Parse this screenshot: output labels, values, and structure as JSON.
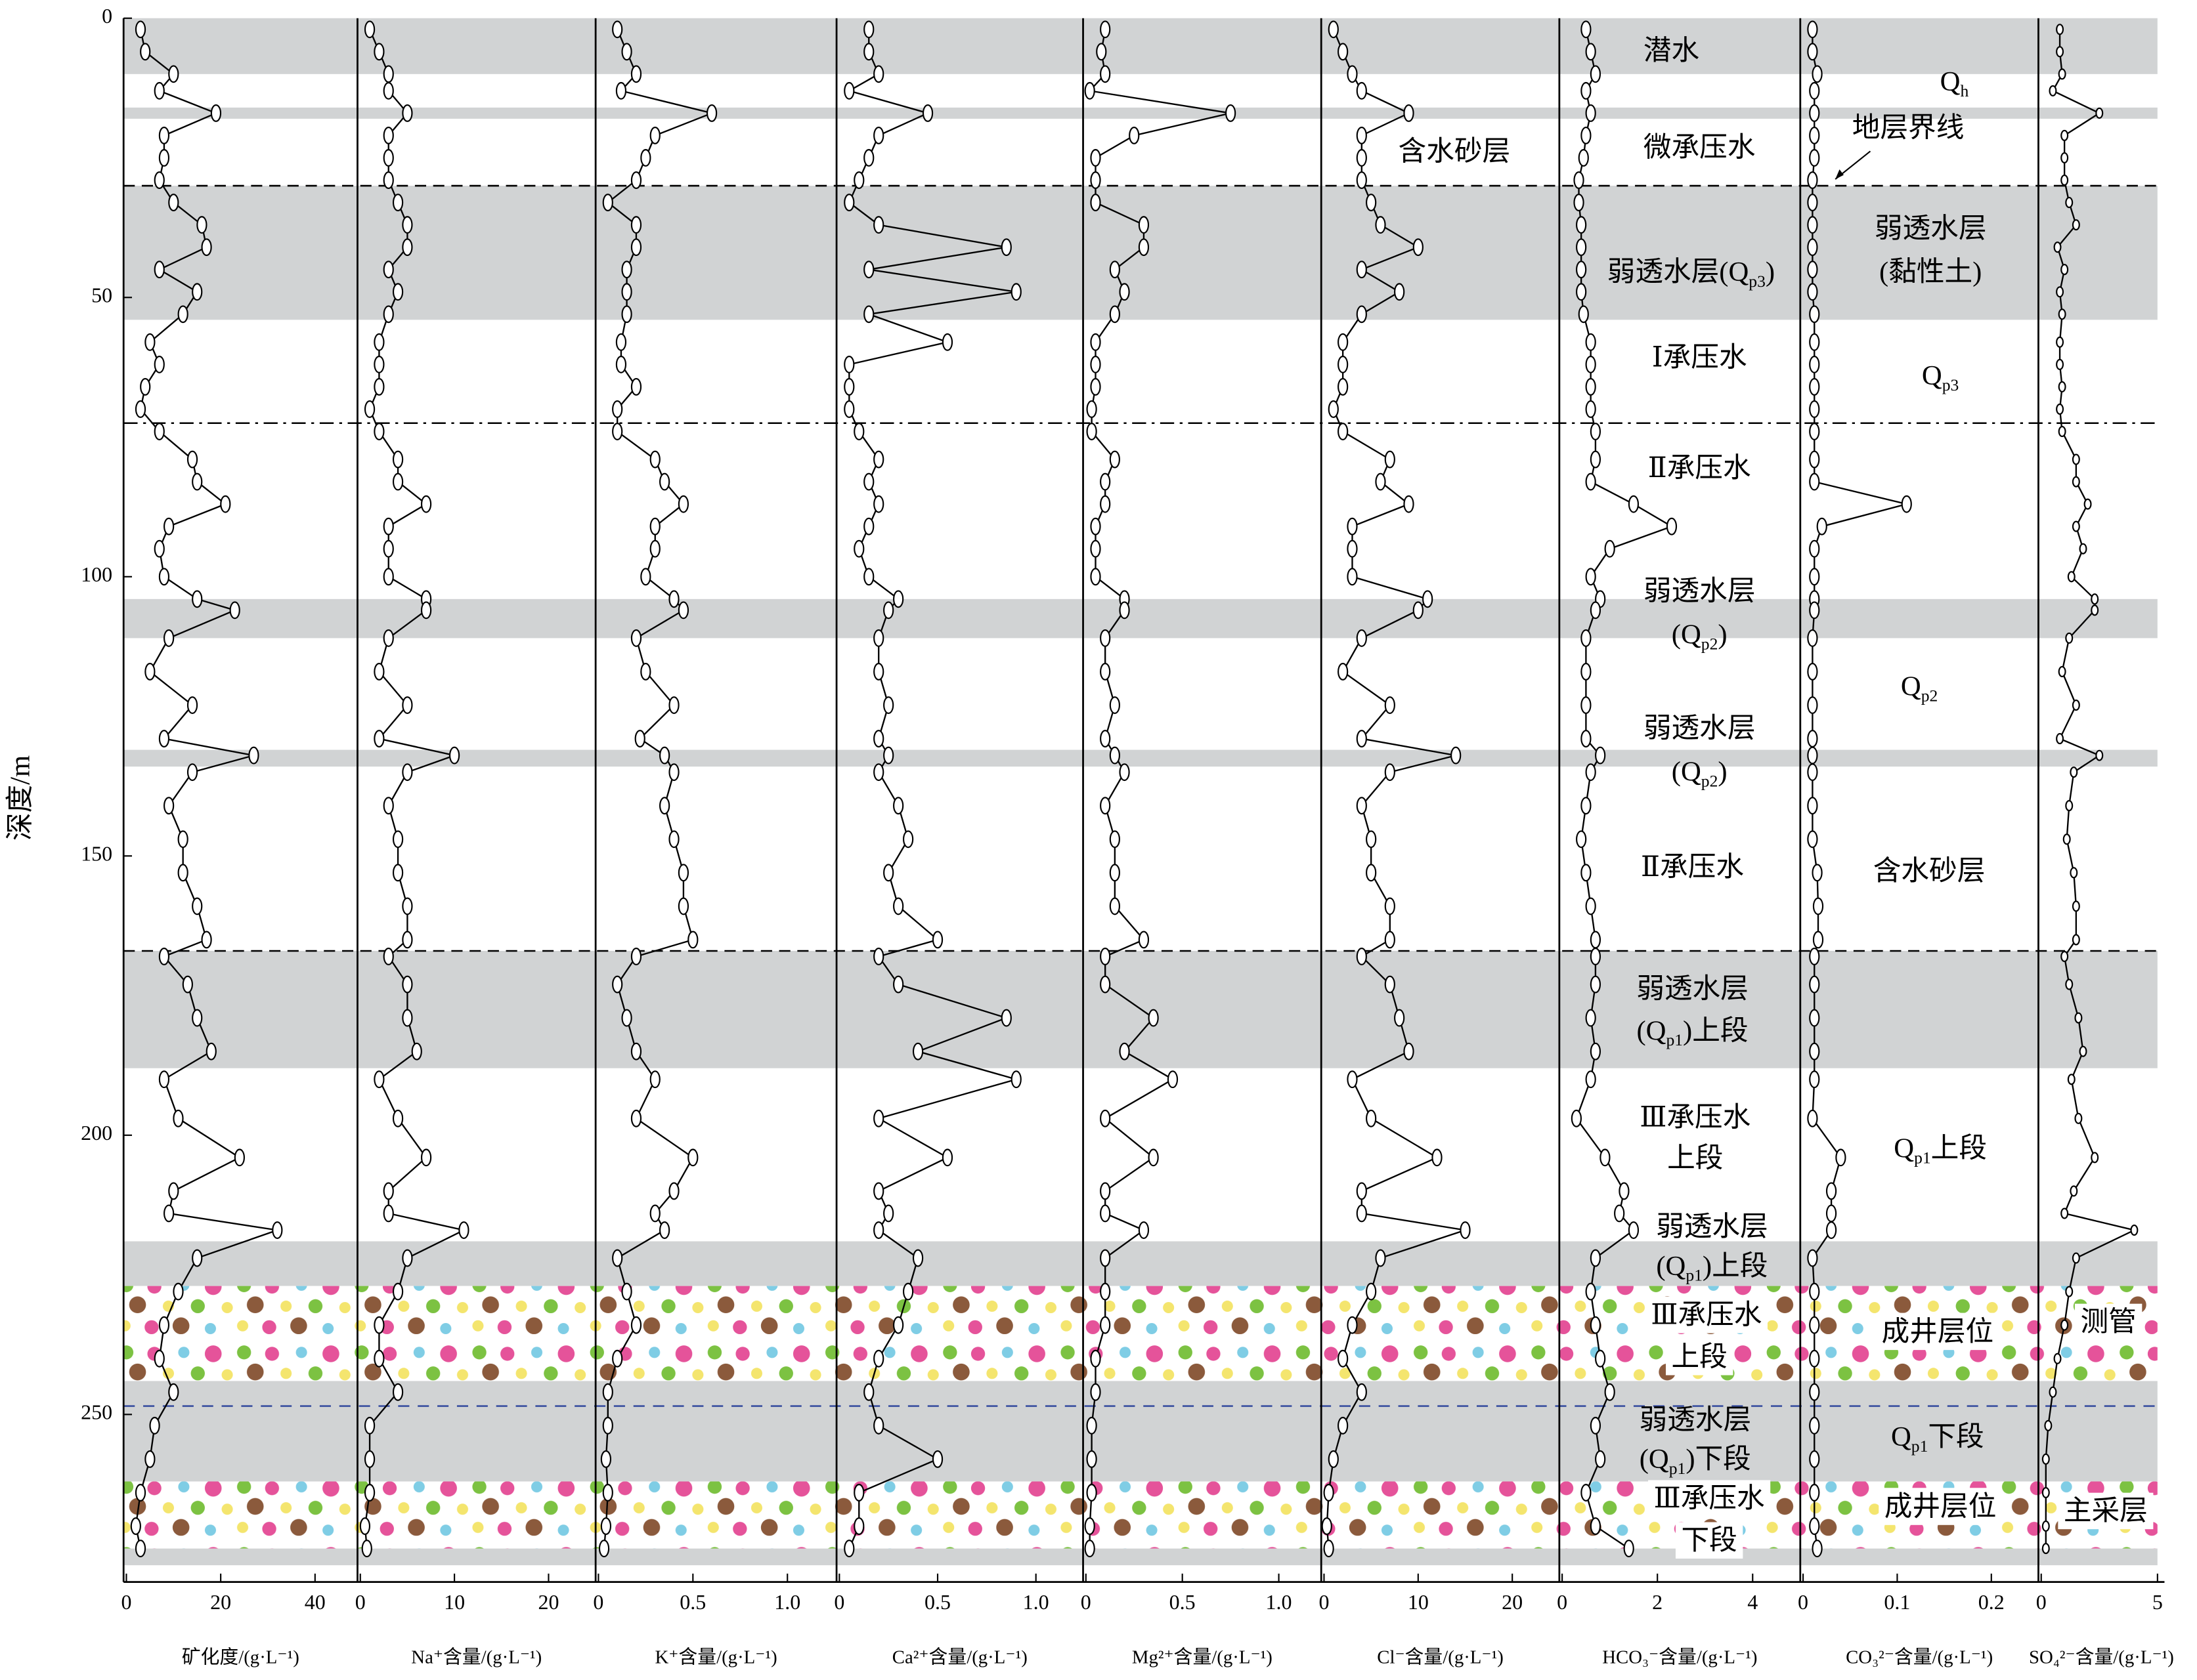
{
  "chart_data": [
    {
      "type": "line",
      "xlabel": "矿化度/(g·L⁻¹)",
      "ylabel": "深度/m",
      "ylim": [
        0,
        280
      ],
      "yticks": [
        0,
        50,
        100,
        150,
        200,
        250
      ],
      "xlim": [
        0,
        49
      ],
      "xticks": [
        0,
        20,
        40
      ],
      "color": "#000000",
      "depth": [
        2,
        6,
        10,
        13,
        17,
        21,
        25,
        29,
        33,
        37,
        41,
        45,
        49,
        53,
        58,
        62,
        66,
        70,
        74,
        79,
        83,
        87,
        91,
        95,
        100,
        104,
        106,
        111,
        117,
        123,
        129,
        132,
        135,
        141,
        147,
        153,
        159,
        165,
        168,
        173,
        179,
        185,
        190,
        197,
        204,
        210,
        214,
        217,
        222,
        228,
        234,
        240,
        246,
        252,
        258,
        264,
        270,
        274
      ],
      "values": [
        3,
        4,
        10,
        7,
        19,
        8,
        8,
        7,
        10,
        16,
        17,
        7,
        15,
        12,
        5,
        7,
        4,
        3,
        7,
        14,
        15,
        21,
        9,
        7,
        8,
        15,
        23,
        9,
        5,
        14,
        8,
        27,
        14,
        9,
        12,
        12,
        15,
        17,
        8,
        13,
        15,
        18,
        8,
        11,
        24,
        10,
        9,
        32,
        15,
        11,
        8,
        7,
        10,
        6,
        5,
        3,
        2,
        3
      ]
    },
    {
      "type": "line",
      "xlabel": "Na⁺含量/(g·L⁻¹)",
      "ylim": [
        0,
        280
      ],
      "xlim": [
        0,
        25
      ],
      "xticks": [
        0,
        10,
        20
      ],
      "color": "#000000",
      "depth": [
        2,
        6,
        10,
        13,
        17,
        21,
        25,
        29,
        33,
        37,
        41,
        45,
        49,
        53,
        58,
        62,
        66,
        70,
        74,
        79,
        83,
        87,
        91,
        95,
        100,
        104,
        106,
        111,
        117,
        123,
        129,
        132,
        135,
        141,
        147,
        153,
        159,
        165,
        168,
        173,
        179,
        185,
        190,
        197,
        204,
        210,
        214,
        217,
        222,
        228,
        234,
        240,
        246,
        252,
        258,
        264,
        270,
        274
      ],
      "values": [
        1,
        2,
        3,
        3,
        5,
        3,
        3,
        3,
        4,
        5,
        5,
        3,
        4,
        3,
        2,
        2,
        2,
        1,
        2,
        4,
        4,
        7,
        3,
        3,
        3,
        7,
        7,
        3,
        2,
        5,
        2,
        10,
        5,
        3,
        4,
        4,
        5,
        5,
        3,
        5,
        5,
        6,
        2,
        4,
        7,
        3,
        3,
        11,
        5,
        4,
        2,
        2,
        4,
        1,
        1,
        1,
        0.5,
        0.7
      ]
    },
    {
      "type": "line",
      "xlabel": "K⁺含量/(g·L⁻¹)",
      "ylim": [
        0,
        280
      ],
      "xlim": [
        0,
        1.26
      ],
      "xticks": [
        0,
        0.5,
        {
          "value": 1,
          "label": "1.0"
        }
      ],
      "color": "#000000",
      "depth": [
        2,
        6,
        10,
        13,
        17,
        21,
        25,
        29,
        33,
        37,
        41,
        45,
        49,
        53,
        58,
        62,
        66,
        70,
        74,
        79,
        83,
        87,
        91,
        95,
        100,
        104,
        106,
        111,
        117,
        123,
        129,
        132,
        135,
        141,
        147,
        153,
        159,
        165,
        168,
        173,
        179,
        185,
        190,
        197,
        204,
        210,
        214,
        217,
        222,
        228,
        234,
        240,
        246,
        252,
        258,
        264,
        270,
        274
      ],
      "values": [
        0.1,
        0.15,
        0.2,
        0.12,
        0.6,
        0.3,
        0.25,
        0.2,
        0.05,
        0.2,
        0.2,
        0.15,
        0.15,
        0.15,
        0.12,
        0.12,
        0.2,
        0.1,
        0.1,
        0.3,
        0.35,
        0.45,
        0.3,
        0.3,
        0.25,
        0.4,
        0.45,
        0.2,
        0.25,
        0.4,
        0.22,
        0.35,
        0.4,
        0.35,
        0.4,
        0.45,
        0.45,
        0.5,
        0.2,
        0.1,
        0.15,
        0.2,
        0.3,
        0.2,
        0.5,
        0.4,
        0.3,
        0.35,
        0.1,
        0.15,
        0.2,
        0.1,
        0.05,
        0.05,
        0.04,
        0.05,
        0.04,
        0.03
      ]
    },
    {
      "type": "line",
      "xlabel": "Ca²⁺含量/(g·L⁻¹)",
      "ylim": [
        0,
        280
      ],
      "xlim": [
        0,
        1.24
      ],
      "xticks": [
        0,
        0.5,
        {
          "value": 1,
          "label": "1.0"
        }
      ],
      "color": "#000000",
      "depth": [
        2,
        6,
        10,
        13,
        17,
        21,
        25,
        29,
        33,
        37,
        41,
        45,
        49,
        53,
        58,
        62,
        66,
        70,
        74,
        79,
        83,
        87,
        91,
        95,
        100,
        104,
        106,
        111,
        117,
        123,
        129,
        132,
        135,
        141,
        147,
        153,
        159,
        165,
        168,
        173,
        179,
        185,
        190,
        197,
        204,
        210,
        214,
        217,
        222,
        228,
        234,
        240,
        246,
        252,
        258,
        264,
        270,
        274
      ],
      "values": [
        0.15,
        0.15,
        0.2,
        0.05,
        0.45,
        0.2,
        0.15,
        0.1,
        0.05,
        0.2,
        0.85,
        0.15,
        0.9,
        0.15,
        0.55,
        0.05,
        0.05,
        0.05,
        0.1,
        0.2,
        0.15,
        0.2,
        0.15,
        0.1,
        0.15,
        0.3,
        0.25,
        0.2,
        0.2,
        0.25,
        0.2,
        0.25,
        0.2,
        0.3,
        0.35,
        0.25,
        0.3,
        0.5,
        0.2,
        0.3,
        0.85,
        0.4,
        0.9,
        0.2,
        0.55,
        0.2,
        0.25,
        0.2,
        0.4,
        0.35,
        0.3,
        0.2,
        0.15,
        0.2,
        0.5,
        0.1,
        0.1,
        0.05
      ]
    },
    {
      "type": "line",
      "xlabel": "Mg²⁺含量/(g·L⁻¹)",
      "ylim": [
        0,
        280
      ],
      "xlim": [
        0,
        1.22
      ],
      "xticks": [
        0,
        0.5,
        {
          "value": 1,
          "label": "1.0"
        }
      ],
      "color": "#000000",
      "depth": [
        2,
        6,
        10,
        13,
        17,
        21,
        25,
        29,
        33,
        37,
        41,
        45,
        49,
        53,
        58,
        62,
        66,
        70,
        74,
        79,
        83,
        87,
        91,
        95,
        100,
        104,
        106,
        111,
        117,
        123,
        129,
        132,
        135,
        141,
        147,
        153,
        159,
        165,
        168,
        173,
        179,
        185,
        190,
        197,
        204,
        210,
        214,
        217,
        222,
        228,
        234,
        240,
        246,
        252,
        258,
        264,
        270,
        274
      ],
      "values": [
        0.1,
        0.08,
        0.1,
        0.02,
        0.75,
        0.25,
        0.05,
        0.05,
        0.05,
        0.3,
        0.3,
        0.15,
        0.2,
        0.15,
        0.05,
        0.05,
        0.05,
        0.03,
        0.03,
        0.15,
        0.1,
        0.1,
        0.05,
        0.05,
        0.05,
        0.2,
        0.2,
        0.1,
        0.1,
        0.15,
        0.1,
        0.15,
        0.2,
        0.1,
        0.15,
        0.15,
        0.15,
        0.3,
        0.1,
        0.1,
        0.35,
        0.2,
        0.45,
        0.1,
        0.35,
        0.1,
        0.1,
        0.3,
        0.1,
        0.1,
        0.1,
        0.05,
        0.05,
        0.03,
        0.03,
        0.03,
        0.02,
        0.02
      ]
    },
    {
      "type": "line",
      "xlabel": "Cl⁻含量/(g·L⁻¹)",
      "ylim": [
        0,
        280
      ],
      "xlim": [
        0,
        25
      ],
      "xticks": [
        0,
        10,
        20
      ],
      "color": "#000000",
      "depth": [
        2,
        6,
        10,
        13,
        17,
        21,
        25,
        29,
        33,
        37,
        41,
        45,
        49,
        53,
        58,
        62,
        66,
        70,
        74,
        79,
        83,
        87,
        91,
        95,
        100,
        104,
        106,
        111,
        117,
        123,
        129,
        132,
        135,
        141,
        147,
        153,
        159,
        165,
        168,
        173,
        179,
        185,
        190,
        197,
        204,
        210,
        214,
        217,
        222,
        228,
        234,
        240,
        246,
        252,
        258,
        264,
        270,
        274
      ],
      "values": [
        1,
        2,
        3,
        4,
        9,
        4,
        4,
        4,
        5,
        6,
        10,
        4,
        8,
        4,
        2,
        2,
        2,
        1,
        2,
        7,
        6,
        9,
        3,
        3,
        3,
        11,
        10,
        4,
        2,
        7,
        4,
        14,
        7,
        4,
        5,
        5,
        7,
        7,
        4,
        7,
        8,
        9,
        3,
        5,
        12,
        4,
        4,
        15,
        6,
        5,
        3,
        2,
        4,
        2,
        1,
        0.5,
        0.3,
        0.5
      ]
    },
    {
      "type": "line",
      "xlabel": "HCO₃⁻含量/(g·L⁻¹)",
      "ylim": [
        0,
        280
      ],
      "xlim": [
        0,
        5
      ],
      "xticks": [
        0,
        2,
        4
      ],
      "color": "#000000",
      "depth": [
        2,
        6,
        10,
        13,
        17,
        21,
        25,
        29,
        33,
        37,
        41,
        45,
        49,
        53,
        58,
        62,
        66,
        70,
        74,
        79,
        83,
        87,
        91,
        95,
        100,
        104,
        106,
        111,
        117,
        123,
        129,
        132,
        135,
        141,
        147,
        153,
        159,
        165,
        168,
        173,
        179,
        185,
        190,
        197,
        204,
        210,
        214,
        217,
        222,
        228,
        234,
        240,
        246,
        252,
        258,
        264,
        270,
        274
      ],
      "values": [
        0.5,
        0.6,
        0.7,
        0.5,
        0.6,
        0.5,
        0.45,
        0.35,
        0.35,
        0.4,
        0.4,
        0.4,
        0.4,
        0.45,
        0.6,
        0.6,
        0.6,
        0.6,
        0.7,
        0.7,
        0.6,
        1.5,
        2.3,
        1,
        0.6,
        0.8,
        0.7,
        0.5,
        0.5,
        0.5,
        0.5,
        0.8,
        0.6,
        0.5,
        0.4,
        0.5,
        0.6,
        0.7,
        0.7,
        0.7,
        0.6,
        0.7,
        0.6,
        0.3,
        0.9,
        1.3,
        1.2,
        1.5,
        0.7,
        0.6,
        0.7,
        0.8,
        1,
        0.7,
        0.8,
        0.5,
        0.7,
        1.4
      ]
    },
    {
      "type": "line",
      "xlabel": "CO₃²⁻含量/(g·L⁻¹)",
      "ylim": [
        0,
        280
      ],
      "xlim": [
        0,
        0.25
      ],
      "xticks": [
        0,
        0.1,
        0.2
      ],
      "color": "#000000",
      "depth": [
        2,
        6,
        10,
        13,
        17,
        21,
        25,
        29,
        33,
        37,
        41,
        45,
        49,
        53,
        58,
        62,
        66,
        70,
        74,
        79,
        83,
        87,
        91,
        95,
        100,
        104,
        106,
        111,
        117,
        123,
        129,
        132,
        135,
        141,
        147,
        153,
        159,
        165,
        168,
        173,
        179,
        185,
        190,
        197,
        204,
        210,
        214,
        217,
        222,
        228,
        234,
        240,
        246,
        252,
        258,
        264,
        270,
        274
      ],
      "values": [
        0.01,
        0.01,
        0.015,
        0.012,
        0.012,
        0.012,
        0.012,
        0.01,
        0.01,
        0.01,
        0.01,
        0.01,
        0.01,
        0.012,
        0.012,
        0.012,
        0.012,
        0.012,
        0.012,
        0.012,
        0.012,
        0.11,
        0.02,
        0.012,
        0.012,
        0.012,
        0.012,
        0.01,
        0.01,
        0.01,
        0.01,
        0.01,
        0.01,
        0.01,
        0.01,
        0.015,
        0.016,
        0.016,
        0.012,
        0.012,
        0.012,
        0.012,
        0.012,
        0.01,
        0.04,
        0.03,
        0.03,
        0.03,
        0.01,
        0.012,
        0.012,
        0.012,
        0.012,
        0.012,
        0.012,
        0.012,
        0.012,
        0.015
      ]
    },
    {
      "type": "line",
      "xlabel": "SO₄²⁻含量/(g·L⁻¹)",
      "ylim": [
        0,
        280
      ],
      "xlim": [
        0,
        5.3
      ],
      "xticks": [
        0,
        5
      ],
      "color": "#000000",
      "depth": [
        2,
        6,
        10,
        13,
        17,
        21,
        25,
        29,
        33,
        37,
        41,
        45,
        49,
        53,
        58,
        62,
        66,
        70,
        74,
        79,
        83,
        87,
        91,
        95,
        100,
        104,
        106,
        111,
        117,
        123,
        129,
        132,
        135,
        141,
        147,
        153,
        159,
        165,
        168,
        173,
        179,
        185,
        190,
        197,
        204,
        210,
        214,
        217,
        222,
        228,
        234,
        240,
        246,
        252,
        258,
        264,
        270,
        274
      ],
      "values": [
        0.8,
        0.8,
        0.9,
        0.5,
        2.5,
        1,
        1,
        1,
        1.2,
        1.5,
        0.7,
        1,
        0.8,
        0.9,
        0.8,
        0.8,
        0.9,
        0.8,
        0.9,
        1.5,
        1.5,
        2,
        1.5,
        1.8,
        1.3,
        2.3,
        2.3,
        1.2,
        0.9,
        1.5,
        0.8,
        2.5,
        1.4,
        1.2,
        1.1,
        1.4,
        1.5,
        1.5,
        1,
        1.2,
        1.6,
        1.8,
        1.3,
        1.6,
        2.3,
        1.4,
        1,
        4,
        1.5,
        1.2,
        1,
        0.7,
        0.5,
        0.3,
        0.2,
        0.2,
        0.2,
        0.2
      ]
    }
  ],
  "strata": [
    {
      "kind": "aquitard",
      "depth": [
        0,
        10
      ]
    },
    {
      "kind": "aquitard",
      "depth": [
        16,
        18
      ]
    },
    {
      "kind": "aquitard",
      "depth": [
        30,
        54
      ]
    },
    {
      "kind": "aquitard",
      "depth": [
        104,
        111
      ]
    },
    {
      "kind": "aquitard",
      "depth": [
        131,
        134
      ]
    },
    {
      "kind": "aquitard",
      "depth": [
        167,
        188
      ]
    },
    {
      "kind": "aquitard",
      "depth": [
        219,
        227
      ]
    },
    {
      "kind": "aquitard",
      "depth": [
        244,
        262
      ]
    },
    {
      "kind": "aquitard",
      "depth": [
        274,
        277
      ]
    },
    {
      "kind": "well",
      "depth": [
        227,
        244
      ]
    },
    {
      "kind": "well",
      "depth": [
        262,
        274
      ]
    }
  ],
  "boundaries": [
    {
      "depth": 30,
      "style": "dashed"
    },
    {
      "depth": 72.5,
      "style": "dashdot"
    },
    {
      "depth": 167,
      "style": "dashed"
    },
    {
      "depth": 248.5,
      "style": "blue"
    }
  ],
  "annotations": [
    {
      "parts": [
        "潜水"
      ]
    },
    {
      "parts": [
        "微承压水"
      ]
    },
    {
      "parts": [
        "弱透水层(Q",
        "p3",
        ")"
      ]
    },
    {
      "parts": [
        "Ⅰ承压水"
      ]
    },
    {
      "parts": [
        "Ⅱ承压水"
      ]
    },
    {
      "parts": [
        "弱透水层"
      ]
    },
    {
      "parts": [
        "(Q",
        "p2",
        ")"
      ]
    },
    {
      "parts": [
        "弱透水层"
      ]
    },
    {
      "parts": [
        "(Q",
        "p2",
        ")"
      ]
    },
    {
      "parts": [
        "Ⅱ承压水"
      ]
    },
    {
      "parts": [
        "弱透水层"
      ]
    },
    {
      "parts": [
        "(Q",
        "p1",
        ")上段"
      ]
    },
    {
      "parts": [
        "Ⅲ承压水"
      ]
    },
    {
      "parts": [
        "上段"
      ]
    },
    {
      "parts": [
        "弱透水层"
      ]
    },
    {
      "parts": [
        "(Q",
        "p1",
        ")上段"
      ]
    },
    {
      "parts": [
        "Ⅲ承压水"
      ]
    },
    {
      "parts": [
        "上段"
      ]
    },
    {
      "parts": [
        "弱透水层"
      ]
    },
    {
      "parts": [
        "(Q",
        "p1",
        ")下段"
      ]
    },
    {
      "parts": [
        "Ⅲ承压水"
      ]
    },
    {
      "parts": [
        "下段"
      ]
    },
    {
      "parts": [
        "Q",
        "h"
      ]
    },
    {
      "parts": [
        "地层界线"
      ]
    },
    {
      "parts": [
        "弱透水层"
      ]
    },
    {
      "parts": [
        "(黏性土)"
      ]
    },
    {
      "parts": [
        "Q",
        "p3"
      ]
    },
    {
      "parts": [
        "Q",
        "p2"
      ]
    },
    {
      "parts": [
        "含水砂层"
      ]
    },
    {
      "parts": [
        "Q",
        "p1",
        "上段"
      ]
    },
    {
      "parts": [
        "成井层位"
      ]
    },
    {
      "parts": [
        "Q",
        "p1",
        "下段"
      ]
    },
    {
      "parts": [
        "成井层位"
      ]
    },
    {
      "parts": [
        "含水砂层"
      ]
    },
    {
      "parts": [
        "测管"
      ]
    },
    {
      "parts": [
        "主采层"
      ]
    }
  ]
}
